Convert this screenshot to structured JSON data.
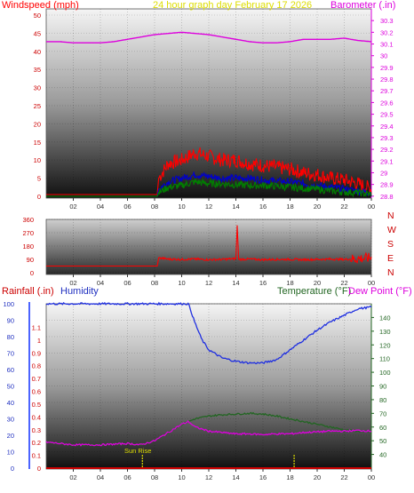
{
  "header": {
    "left_label": "Windspeed (mph)",
    "title": "24 hour graph day   February 17 2026",
    "right_label": "Barometer (.in)"
  },
  "bottom_header": {
    "rainfall_label": "Rainfall (.in)",
    "humidity_label": "Humidity",
    "temperature_label": "Temperature (°F)",
    "dewpoint_label": "Dew Point (°F)"
  },
  "annotation": {
    "sunrise_label": "Sun Rise"
  },
  "colors": {
    "windspeed": "#ff0000",
    "gust": "#ff0000",
    "wind_avg": "#0000cc",
    "wind_low": "#008000",
    "barometer": "#dd00dd",
    "direction": "#ff0000",
    "humidity": "#2030e0",
    "temperature": "#226622",
    "dewpoint": "#dd00dd",
    "rainfall": "#cc0000",
    "title": "#dddd00",
    "sunmarker": "#dddd00"
  },
  "chart_data": [
    {
      "type": "line",
      "panel": "wind-barometer",
      "xlabel": "",
      "x_ticks": [
        "02",
        "04",
        "06",
        "08",
        "10",
        "12",
        "14",
        "16",
        "18",
        "20",
        "22",
        "00"
      ],
      "xlim_hours": [
        0,
        24
      ],
      "y_left": {
        "label": "Windspeed (mph)",
        "ylim": [
          0,
          50
        ],
        "ticks": [
          "0",
          "5",
          "10",
          "15",
          "20",
          "25",
          "30",
          "35",
          "40",
          "45",
          "50"
        ]
      },
      "y_right": {
        "label": "Barometer (.in)",
        "ylim": [
          28.7,
          30.4
        ],
        "ticks": [
          "28.8",
          "28.9",
          "29",
          "29.1",
          "29.2",
          "29.3",
          "29.4",
          "29.5",
          "29.6",
          "29.7",
          "29.8",
          "29.9",
          "30",
          "30.1",
          "30.2",
          "30.3"
        ]
      },
      "series": [
        {
          "name": "Barometer",
          "axis": "right",
          "color": "#dd00dd",
          "x": [
            0,
            1,
            2,
            3,
            4,
            5,
            6,
            7,
            8,
            9,
            10,
            11,
            12,
            13,
            14,
            15,
            16,
            17,
            18,
            19,
            20,
            21,
            22,
            23,
            24
          ],
          "values": [
            30.12,
            30.12,
            30.11,
            30.11,
            30.11,
            30.12,
            30.14,
            30.16,
            30.18,
            30.19,
            30.2,
            30.19,
            30.18,
            30.16,
            30.14,
            30.12,
            30.11,
            30.11,
            30.12,
            30.14,
            30.14,
            30.14,
            30.15,
            30.13,
            30.12
          ]
        },
        {
          "name": "Windspeed max",
          "axis": "left",
          "color": "#ff0000",
          "x": [
            0,
            8.2,
            8.3,
            9,
            10,
            11,
            12,
            13,
            14,
            15,
            16,
            17,
            18,
            19,
            20,
            21,
            22,
            23,
            24
          ],
          "values": [
            0.5,
            0.5,
            5,
            9,
            10,
            12,
            11,
            10,
            10,
            9,
            8.5,
            8,
            7.5,
            6.5,
            6,
            5,
            4.5,
            3.5,
            2
          ]
        },
        {
          "name": "Windspeed avg",
          "axis": "left",
          "color": "#0000cc",
          "x": [
            0,
            8.2,
            8.3,
            9,
            10,
            11,
            12,
            13,
            14,
            15,
            16,
            17,
            18,
            19,
            20,
            21,
            22,
            23,
            24
          ],
          "values": [
            0,
            0,
            2,
            4,
            5,
            6,
            5.5,
            5,
            5,
            5,
            4.5,
            4.2,
            4,
            3.5,
            3,
            2.5,
            2,
            1.5,
            1
          ]
        },
        {
          "name": "Windspeed low",
          "axis": "left",
          "color": "#008000",
          "x": [
            0,
            8.2,
            8.3,
            9,
            10,
            11,
            12,
            13,
            14,
            15,
            16,
            17,
            18,
            19,
            20,
            21,
            22,
            23,
            24
          ],
          "values": [
            0,
            0,
            1,
            2.5,
            3,
            4,
            3.5,
            3.5,
            3.2,
            3,
            3,
            2.8,
            2.5,
            2.2,
            2,
            1.5,
            1.2,
            1,
            0.5
          ]
        }
      ]
    },
    {
      "type": "line",
      "panel": "wind-direction",
      "x_ticks": [
        "02",
        "04",
        "06",
        "08",
        "10",
        "12",
        "14",
        "16",
        "18",
        "20",
        "22",
        "00"
      ],
      "xlim_hours": [
        0,
        24
      ],
      "ylim": [
        0,
        360
      ],
      "y_ticks": [
        "0",
        "90",
        "180",
        "270",
        "360"
      ],
      "direction_labels": [
        "N",
        "W",
        "S",
        "E",
        "N"
      ],
      "series": [
        {
          "name": "Wind direction",
          "color": "#ff0000",
          "x": [
            0,
            8.2,
            8.3,
            9,
            10,
            11,
            12,
            13,
            14,
            14.1,
            14.2,
            15,
            16,
            17,
            18,
            19,
            20,
            21,
            22,
            23,
            24
          ],
          "values": [
            45,
            45,
            100,
            92,
            90,
            92,
            88,
            90,
            95,
            320,
            90,
            92,
            88,
            90,
            90,
            88,
            90,
            92,
            90,
            95,
            100
          ]
        }
      ]
    },
    {
      "type": "line",
      "panel": "temperature-humidity",
      "x_ticks": [
        "02",
        "04",
        "06",
        "08",
        "10",
        "12",
        "14",
        "16",
        "18",
        "20",
        "22",
        "00"
      ],
      "xlim_hours": [
        0,
        24
      ],
      "y_left": {
        "label": "Humidity",
        "ylim": [
          0,
          100
        ],
        "ticks": [
          "0",
          "10",
          "20",
          "30",
          "40",
          "50",
          "60",
          "70",
          "80",
          "90",
          "100"
        ]
      },
      "y_rain": {
        "label": "Rainfall (.in)",
        "ylim": [
          0,
          1.2
        ],
        "ticks": [
          "0",
          "0.1",
          "0.2",
          "0.3",
          "0.4",
          "0.5",
          "0.6",
          "0.7",
          "0.8",
          "0.9",
          "1",
          "1.1"
        ]
      },
      "y_right": {
        "label": "Temperature (°F)",
        "ylim": [
          30,
          150
        ],
        "ticks": [
          "40",
          "50",
          "60",
          "70",
          "80",
          "90",
          "100",
          "110",
          "120",
          "130",
          "140"
        ]
      },
      "series": [
        {
          "name": "Humidity",
          "axis": "left",
          "color": "#2030e0",
          "x": [
            0,
            2,
            4,
            6,
            8,
            10,
            10.5,
            11,
            11.5,
            12,
            13,
            14,
            15,
            16,
            17,
            18,
            19,
            20,
            21,
            22,
            23,
            24
          ],
          "values": [
            100,
            100,
            100,
            100,
            100,
            100,
            100,
            88,
            78,
            72,
            67,
            65,
            64,
            64,
            66,
            72,
            78,
            84,
            89,
            93,
            97,
            98
          ]
        },
        {
          "name": "Temperature",
          "axis": "right",
          "color": "#226622",
          "x": [
            0,
            2,
            4,
            6,
            7,
            8,
            9,
            10,
            10.5,
            11,
            12,
            13,
            14,
            15,
            16,
            17,
            18,
            19,
            20,
            21,
            22,
            23,
            24
          ],
          "values": [
            49,
            47,
            47,
            48,
            47,
            50,
            56,
            62,
            64,
            66,
            68,
            69,
            69.5,
            70,
            69.5,
            68,
            66,
            64,
            62,
            60,
            58,
            57,
            56
          ]
        },
        {
          "name": "Dew Point",
          "axis": "right",
          "color": "#dd00dd",
          "x": [
            0,
            2,
            4,
            6,
            7,
            8,
            9,
            10,
            10.5,
            11,
            12,
            13,
            14,
            15,
            16,
            17,
            18,
            19,
            20,
            21,
            22,
            23,
            24
          ],
          "values": [
            49,
            47,
            47,
            48,
            47,
            50,
            56,
            62,
            64,
            60,
            57,
            56,
            55,
            55,
            54.5,
            55,
            55,
            56,
            56.5,
            57,
            57,
            57.5,
            57
          ]
        },
        {
          "name": "Rainfall",
          "axis": "rain",
          "color": "#cc0000",
          "x": [
            0,
            24
          ],
          "values": [
            0,
            0
          ]
        }
      ],
      "markers": [
        {
          "x": 7.1,
          "label": "Sun Rise"
        },
        {
          "x": 18.3,
          "label": ""
        }
      ]
    }
  ]
}
